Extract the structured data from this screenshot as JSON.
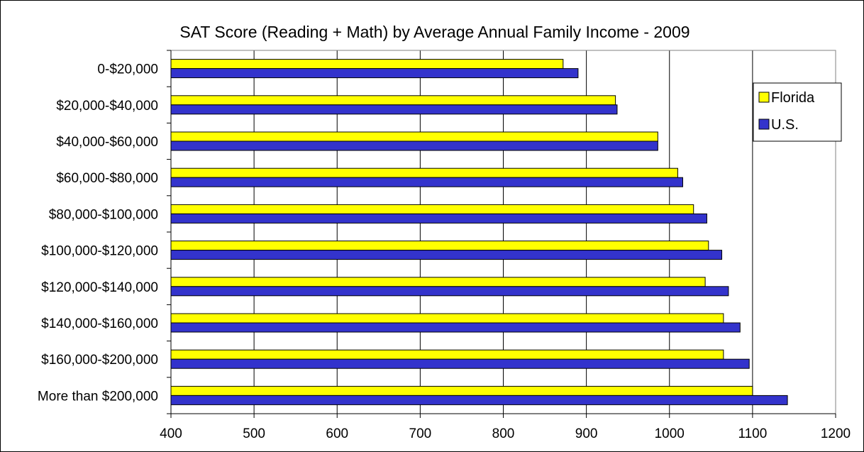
{
  "chart_data": {
    "type": "bar",
    "orientation": "horizontal",
    "title": "SAT Score (Reading + Math) by Average Annual Family Income - 2009",
    "xlabel": "",
    "ylabel": "",
    "xlim": [
      400,
      1200
    ],
    "x_ticks": [
      "400",
      "500",
      "600",
      "700",
      "800",
      "900",
      "1000",
      "1100",
      "1200"
    ],
    "grid": "vertical major gridlines",
    "legend_position": "right",
    "categories": [
      "0-$20,000",
      "$20,000-$40,000",
      "$40,000-$60,000",
      "$60,000-$80,000",
      "$80,000-$100,000",
      "$100,000-$120,000",
      "$120,000-$140,000",
      "$140,000-$160,000",
      "$160,000-$200,000",
      "More than $200,000"
    ],
    "series": [
      {
        "name": "Florida",
        "color": "#FFFF00",
        "values": [
          872,
          935,
          986,
          1010,
          1029,
          1047,
          1043,
          1065,
          1065,
          1100
        ]
      },
      {
        "name": "U.S.",
        "color": "#3333CC",
        "values": [
          890,
          937,
          986,
          1016,
          1045,
          1063,
          1071,
          1085,
          1096,
          1142
        ]
      }
    ]
  }
}
